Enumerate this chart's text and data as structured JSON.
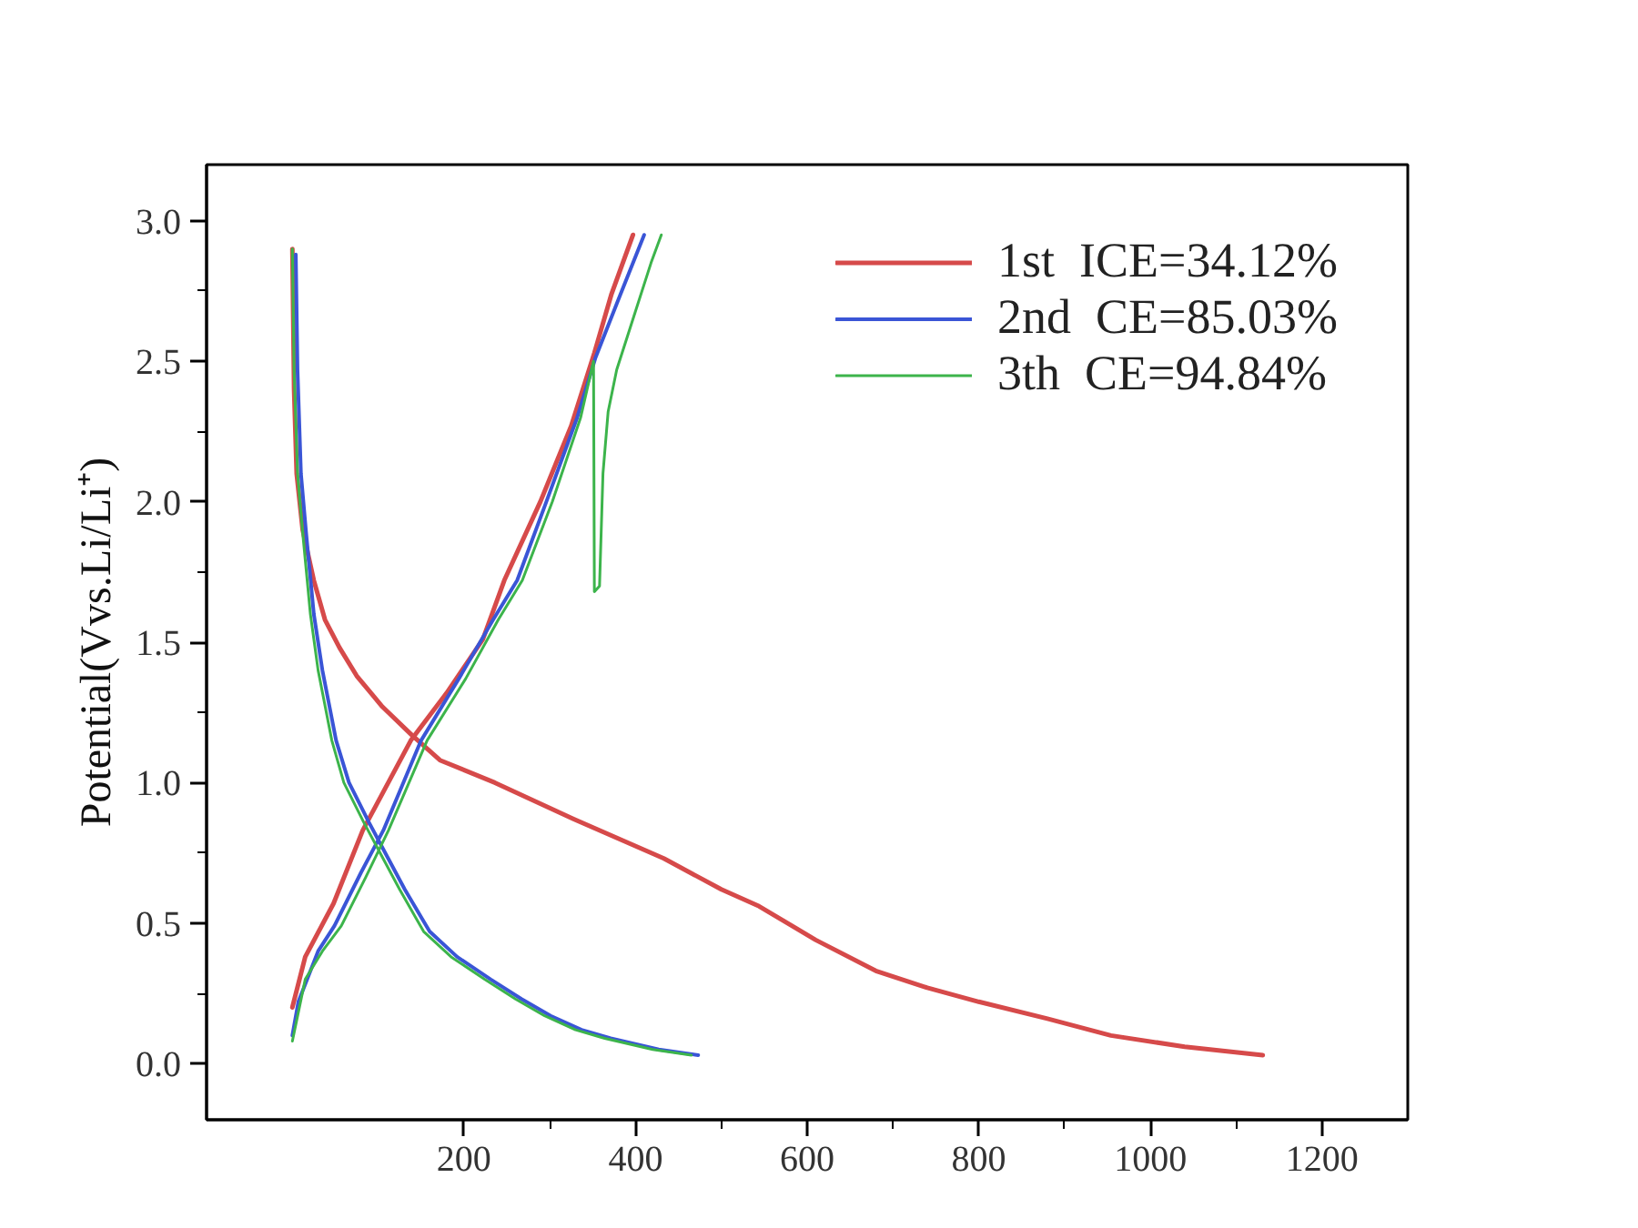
{
  "chart_data": {
    "type": "line",
    "ylabel": "Potential(Vvs.Li/Li⁺)",
    "xlim": [
      -100,
      1300
    ],
    "ylim": [
      -0.2,
      3.2
    ],
    "xticks": [
      200,
      {
        "value": 300,
        "label": null
      },
      400,
      {
        "value": 500,
        "label": null
      },
      600,
      {
        "value": 700,
        "label": null
      },
      800,
      {
        "value": 900,
        "label": null
      },
      1000,
      {
        "value": 1100,
        "label": null
      },
      1200
    ],
    "yticks": [
      {
        "value": 0,
        "label": "0.0"
      },
      {
        "value": 0.25,
        "label": null
      },
      {
        "value": 0.5,
        "label": "0.5"
      },
      {
        "value": 0.75,
        "label": null
      },
      {
        "value": 1.0,
        "label": "1.0"
      },
      {
        "value": 1.25,
        "label": null
      },
      {
        "value": 1.5,
        "label": "1.5"
      },
      {
        "value": 1.75,
        "label": null
      },
      {
        "value": 2.0,
        "label": "2.0"
      },
      {
        "value": 2.25,
        "label": null
      },
      {
        "value": 2.5,
        "label": "2.5"
      },
      {
        "value": 2.75,
        "label": null
      },
      {
        "value": 3.0,
        "label": "3.0"
      }
    ],
    "grid": false,
    "legend": "top right",
    "line_style": "solid",
    "series": [
      {
        "name": "1st  ICE=34.12%",
        "color": "#d64a4a",
        "x": [
          0,
          2,
          5,
          12,
          25,
          38,
          55,
          75,
          105,
          139,
          172,
          236,
          328,
          433,
          500,
          544,
          610,
          680,
          740,
          800,
          880,
          954,
          1040,
          1131,
          null,
          0,
          15,
          48,
          82,
          138,
          180,
          222,
          247,
          289,
          325,
          352,
          372,
          397
        ],
        "values": [
          2.9,
          2.4,
          2.1,
          1.9,
          1.72,
          1.58,
          1.48,
          1.38,
          1.27,
          1.17,
          1.08,
          1.0,
          0.87,
          0.73,
          0.62,
          0.56,
          0.44,
          0.33,
          0.27,
          0.22,
          0.16,
          0.1,
          0.06,
          0.03,
          null,
          0.2,
          0.38,
          0.57,
          0.83,
          1.15,
          1.32,
          1.51,
          1.72,
          2.0,
          2.27,
          2.53,
          2.74,
          2.95
        ]
      },
      {
        "name": "2nd  CE=85.03%",
        "color": "#3a55d6",
        "x": [
          4,
          6,
          10,
          16,
          25,
          35,
          51,
          66,
          89,
          110,
          131,
          160,
          192,
          231,
          267,
          301,
          337,
          371,
          427,
          473,
          null,
          0,
          7,
          30,
          49,
          80,
          106,
          150,
          194,
          234,
          262,
          296,
          332,
          353,
          380,
          410
        ],
        "values": [
          2.88,
          2.47,
          2.1,
          1.89,
          1.6,
          1.4,
          1.15,
          1.0,
          0.86,
          0.74,
          0.62,
          0.47,
          0.38,
          0.3,
          0.23,
          0.17,
          0.12,
          0.09,
          0.05,
          0.03,
          null,
          0.1,
          0.22,
          0.4,
          0.49,
          0.68,
          0.83,
          1.15,
          1.37,
          1.58,
          1.72,
          2.0,
          2.3,
          2.51,
          2.72,
          2.95
        ]
      },
      {
        "name": "3th  CE=94.84%",
        "color": "#3cb44b",
        "x": [
          0,
          2,
          6,
          12,
          21,
          30,
          46,
          60,
          83,
          104,
          125,
          153,
          185,
          224,
          260,
          294,
          330,
          364,
          420,
          465,
          null,
          0,
          15,
          35,
          57,
          85,
          112,
          157,
          202,
          240,
          268,
          303,
          336,
          351,
          352,
          358,
          362,
          368,
          378,
          398,
          418,
          430
        ],
        "values": [
          2.9,
          2.47,
          2.1,
          1.89,
          1.6,
          1.4,
          1.15,
          1.0,
          0.86,
          0.74,
          0.62,
          0.47,
          0.38,
          0.3,
          0.23,
          0.17,
          0.12,
          0.09,
          0.05,
          0.03,
          null,
          0.08,
          0.3,
          0.4,
          0.49,
          0.66,
          0.83,
          1.15,
          1.37,
          1.58,
          1.72,
          2.0,
          2.3,
          2.5,
          1.68,
          1.7,
          2.1,
          2.32,
          2.47,
          2.66,
          2.85,
          2.95
        ]
      }
    ]
  }
}
